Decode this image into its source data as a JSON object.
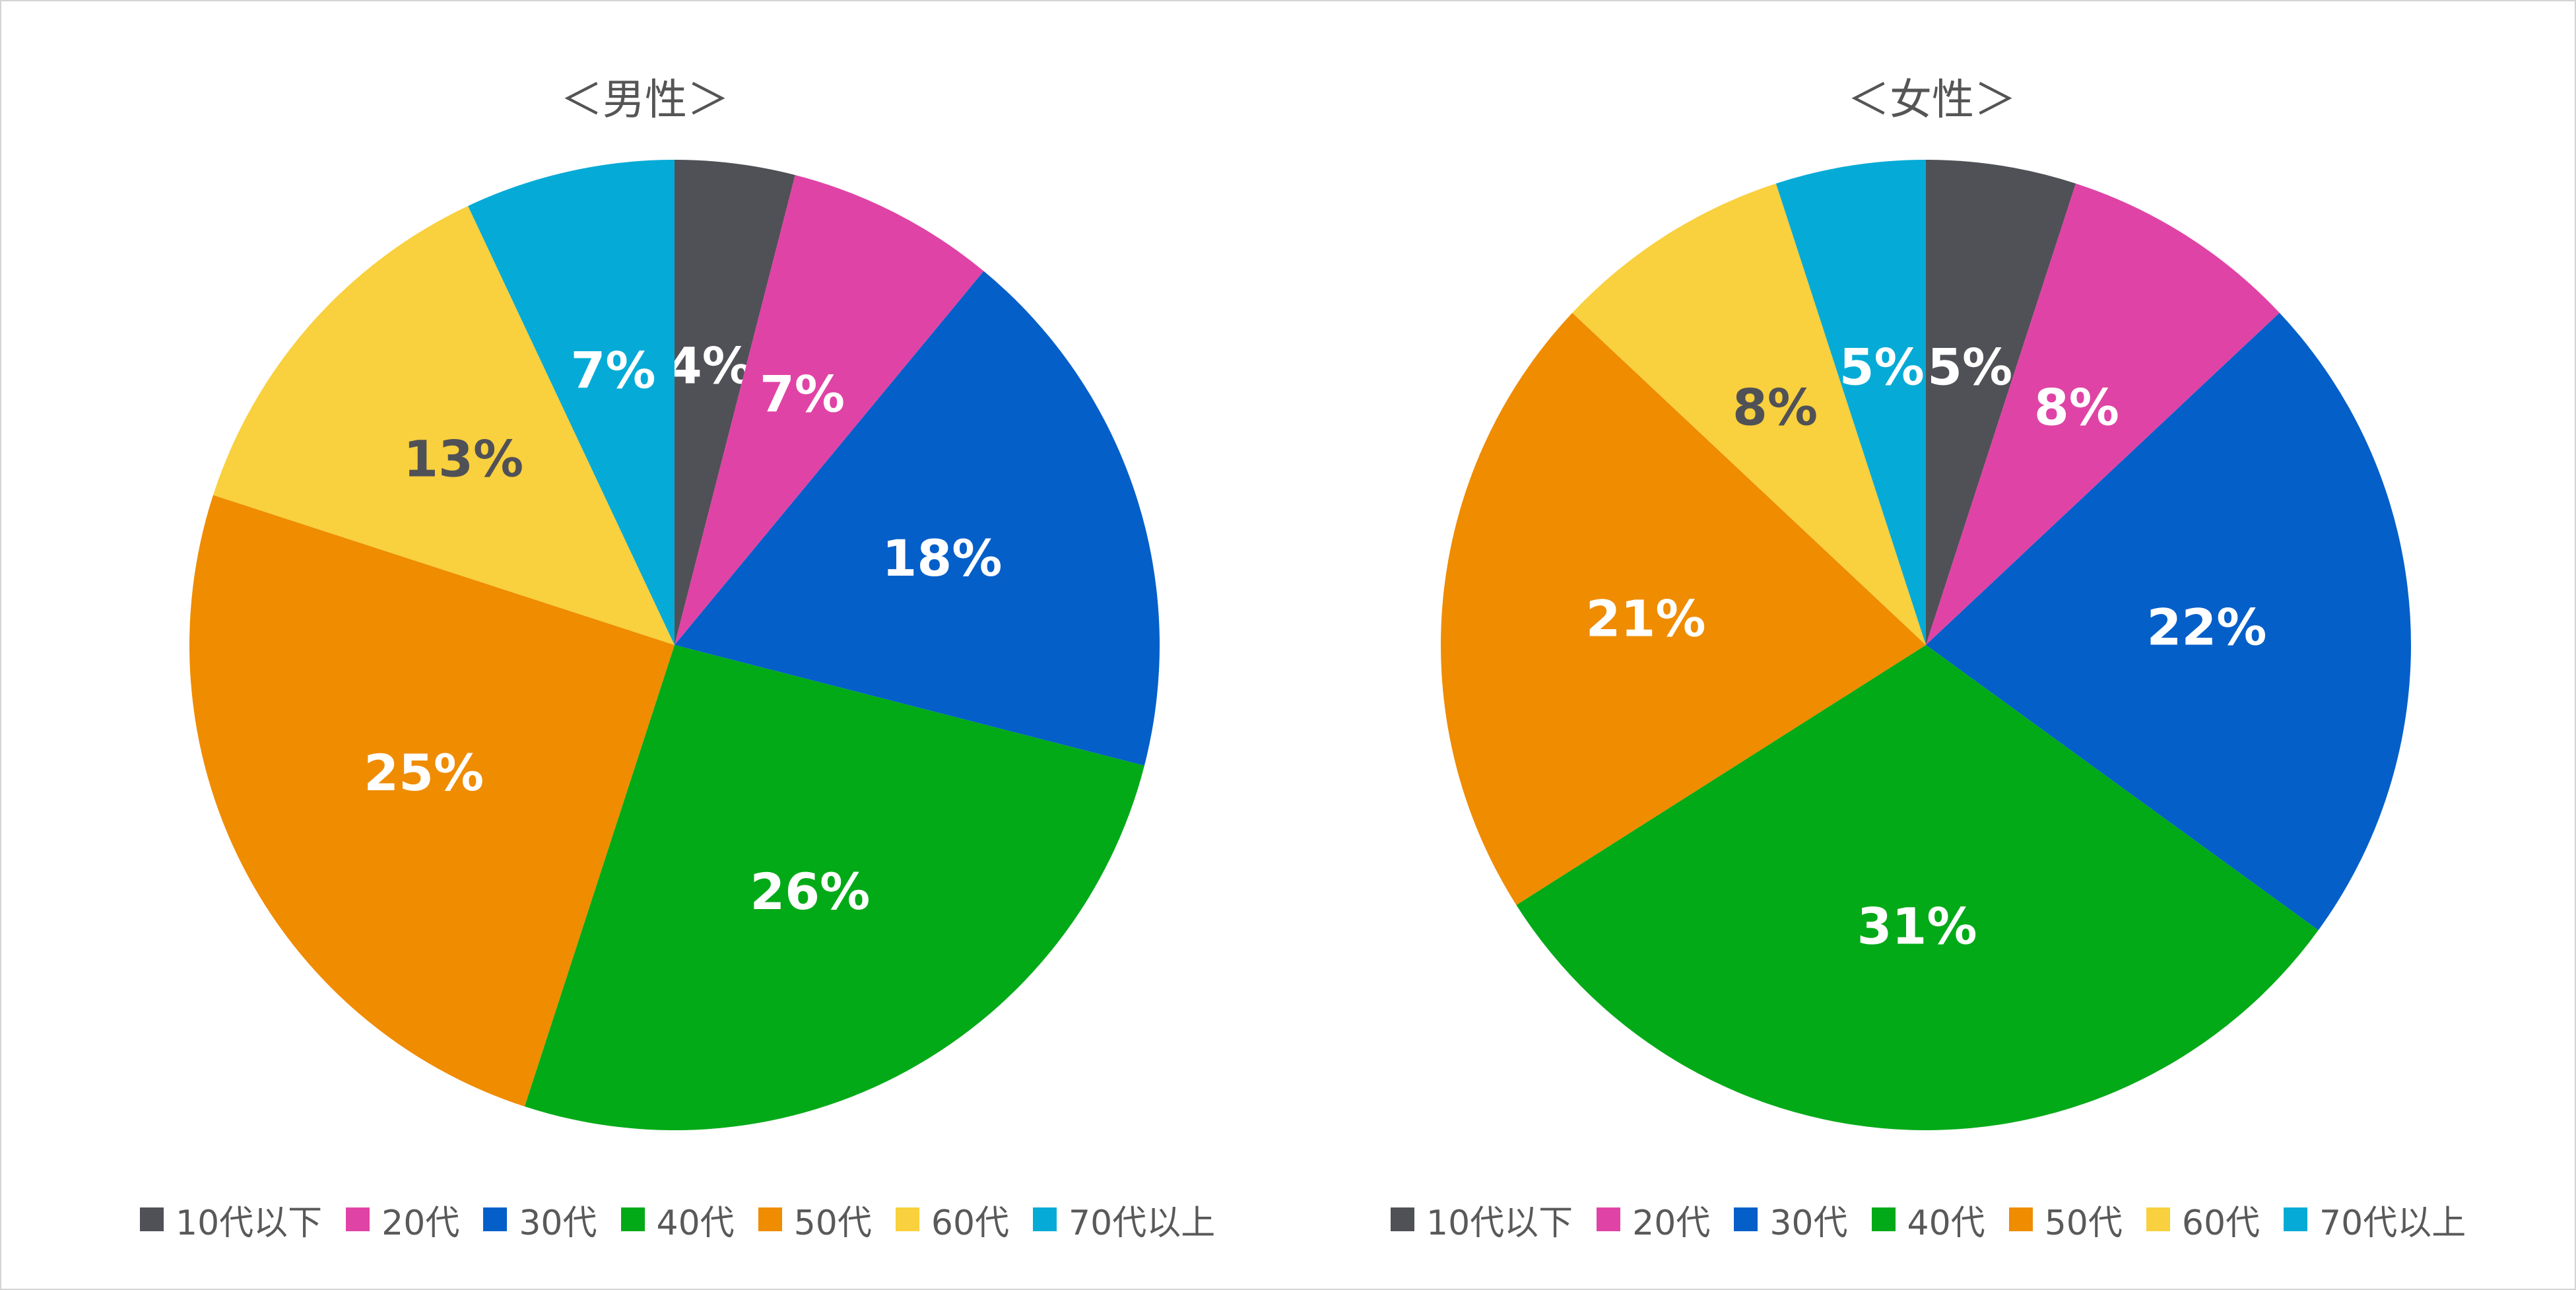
{
  "chart_data": [
    {
      "type": "pie",
      "title": "＜男性＞",
      "categories": [
        "10代以下",
        "20代",
        "30代",
        "40代",
        "50代",
        "60代",
        "70代以上"
      ],
      "values": [
        4,
        7,
        18,
        26,
        25,
        13,
        7
      ],
      "labels": [
        "4%",
        "7%",
        "18%",
        "26%",
        "25%",
        "13%",
        "7%"
      ],
      "colors": [
        "#505157",
        "#e043a6",
        "#045fc9",
        "#02aa17",
        "#ef8c00",
        "#f9d03d",
        "#05abd6"
      ],
      "label_colors": [
        "#ffffff",
        "#ffffff",
        "#ffffff",
        "#ffffff",
        "#ffffff",
        "#505157",
        "#ffffff"
      ],
      "legend": "bottom"
    },
    {
      "type": "pie",
      "title": "＜女性＞",
      "categories": [
        "10代以下",
        "20代",
        "30代",
        "40代",
        "50代",
        "60代",
        "70代以上"
      ],
      "values": [
        5,
        8,
        22,
        31,
        21,
        8,
        5
      ],
      "labels": [
        "5%",
        "8%",
        "22%",
        "31%",
        "21%",
        "8%",
        "5%"
      ],
      "colors": [
        "#505157",
        "#e043a6",
        "#045fc9",
        "#02aa17",
        "#ef8c00",
        "#f9d03d",
        "#05abd6"
      ],
      "label_colors": [
        "#ffffff",
        "#ffffff",
        "#ffffff",
        "#ffffff",
        "#ffffff",
        "#505157",
        "#ffffff"
      ],
      "legend": "bottom"
    }
  ]
}
